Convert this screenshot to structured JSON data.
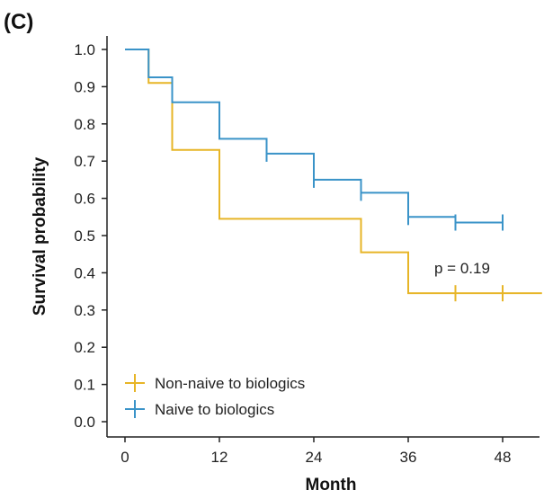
{
  "panel_label": "(C)",
  "chart_data": {
    "type": "line",
    "step": "post",
    "xlabel": "Month",
    "ylabel": "Survival probability",
    "xlim": [
      -2,
      53
    ],
    "ylim": [
      -0.02,
      1.08
    ],
    "xticks": [
      0,
      12,
      24,
      36,
      48
    ],
    "yticks": [
      0.0,
      0.1,
      0.2,
      0.3,
      0.4,
      0.5,
      0.6,
      0.7,
      0.8,
      0.9,
      1.0
    ],
    "ytick_labels": [
      "0.0",
      "0.1",
      "0.2",
      "0.3",
      "0.4",
      "0.5",
      "0.6",
      "0.7",
      "0.8",
      "0.9",
      "1.0"
    ],
    "xtick_labels": [
      "0",
      "12",
      "24",
      "36",
      "48"
    ],
    "annotation": "p = 0.19",
    "legend_position": "bottom-left",
    "series": [
      {
        "name": "Non-naive to biologics",
        "color": "#E7B527",
        "x": [
          0,
          3,
          6,
          12,
          30,
          36,
          53
        ],
        "y": [
          1.0,
          0.91,
          0.73,
          0.545,
          0.455,
          0.345,
          0.345
        ],
        "censor_x": [
          42,
          48
        ],
        "censor_y": [
          0.345,
          0.345
        ]
      },
      {
        "name": "Naive to biologics",
        "color": "#3A93C8",
        "x": [
          0,
          3,
          6,
          12,
          18,
          24,
          30,
          36,
          42,
          48
        ],
        "y": [
          1.0,
          0.925,
          0.858,
          0.76,
          0.72,
          0.65,
          0.615,
          0.55,
          0.535,
          0.535
        ],
        "censor_x": [
          18,
          24,
          30,
          36,
          42,
          48
        ],
        "censor_y": [
          0.72,
          0.65,
          0.615,
          0.55,
          0.535,
          0.535
        ]
      }
    ]
  }
}
